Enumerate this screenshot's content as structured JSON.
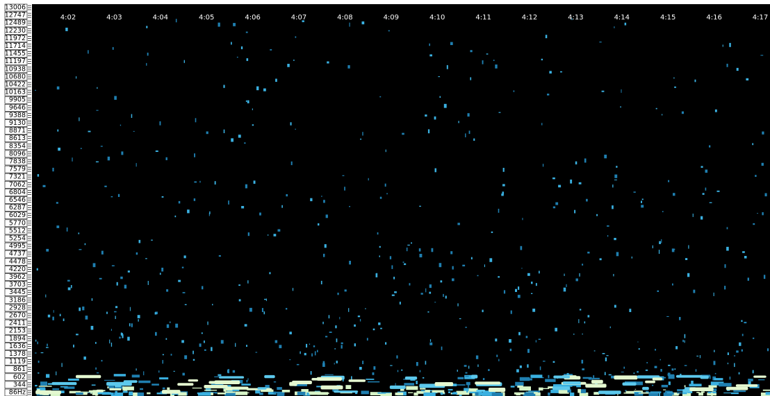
{
  "frequency_labels": [
    "13006",
    "12747",
    "12489",
    "12230",
    "11972",
    "11714",
    "11455",
    "11197",
    "10938",
    "10680",
    "10422",
    "10163",
    "9905",
    "9646",
    "9388",
    "9130",
    "8871",
    "8613",
    "8354",
    "8096",
    "7838",
    "7579",
    "7321",
    "7062",
    "6804",
    "6546",
    "6287",
    "6029",
    "5770",
    "5512",
    "5254",
    "4995",
    "4737",
    "4478",
    "4220",
    "3962",
    "3703",
    "3445",
    "3186",
    "2928",
    "2670",
    "2411",
    "2153",
    "1894",
    "1636",
    "1378",
    "1119",
    "861",
    "602",
    "344",
    "86Hz"
  ],
  "time_labels": [
    "4:02",
    "4:03",
    "4:04",
    "4:05",
    "4:06",
    "4:07",
    "4:08",
    "4:09",
    "4:10",
    "4:11",
    "4:12",
    "4:13",
    "4:14",
    "4:15",
    "4:16",
    "4:17"
  ]
}
